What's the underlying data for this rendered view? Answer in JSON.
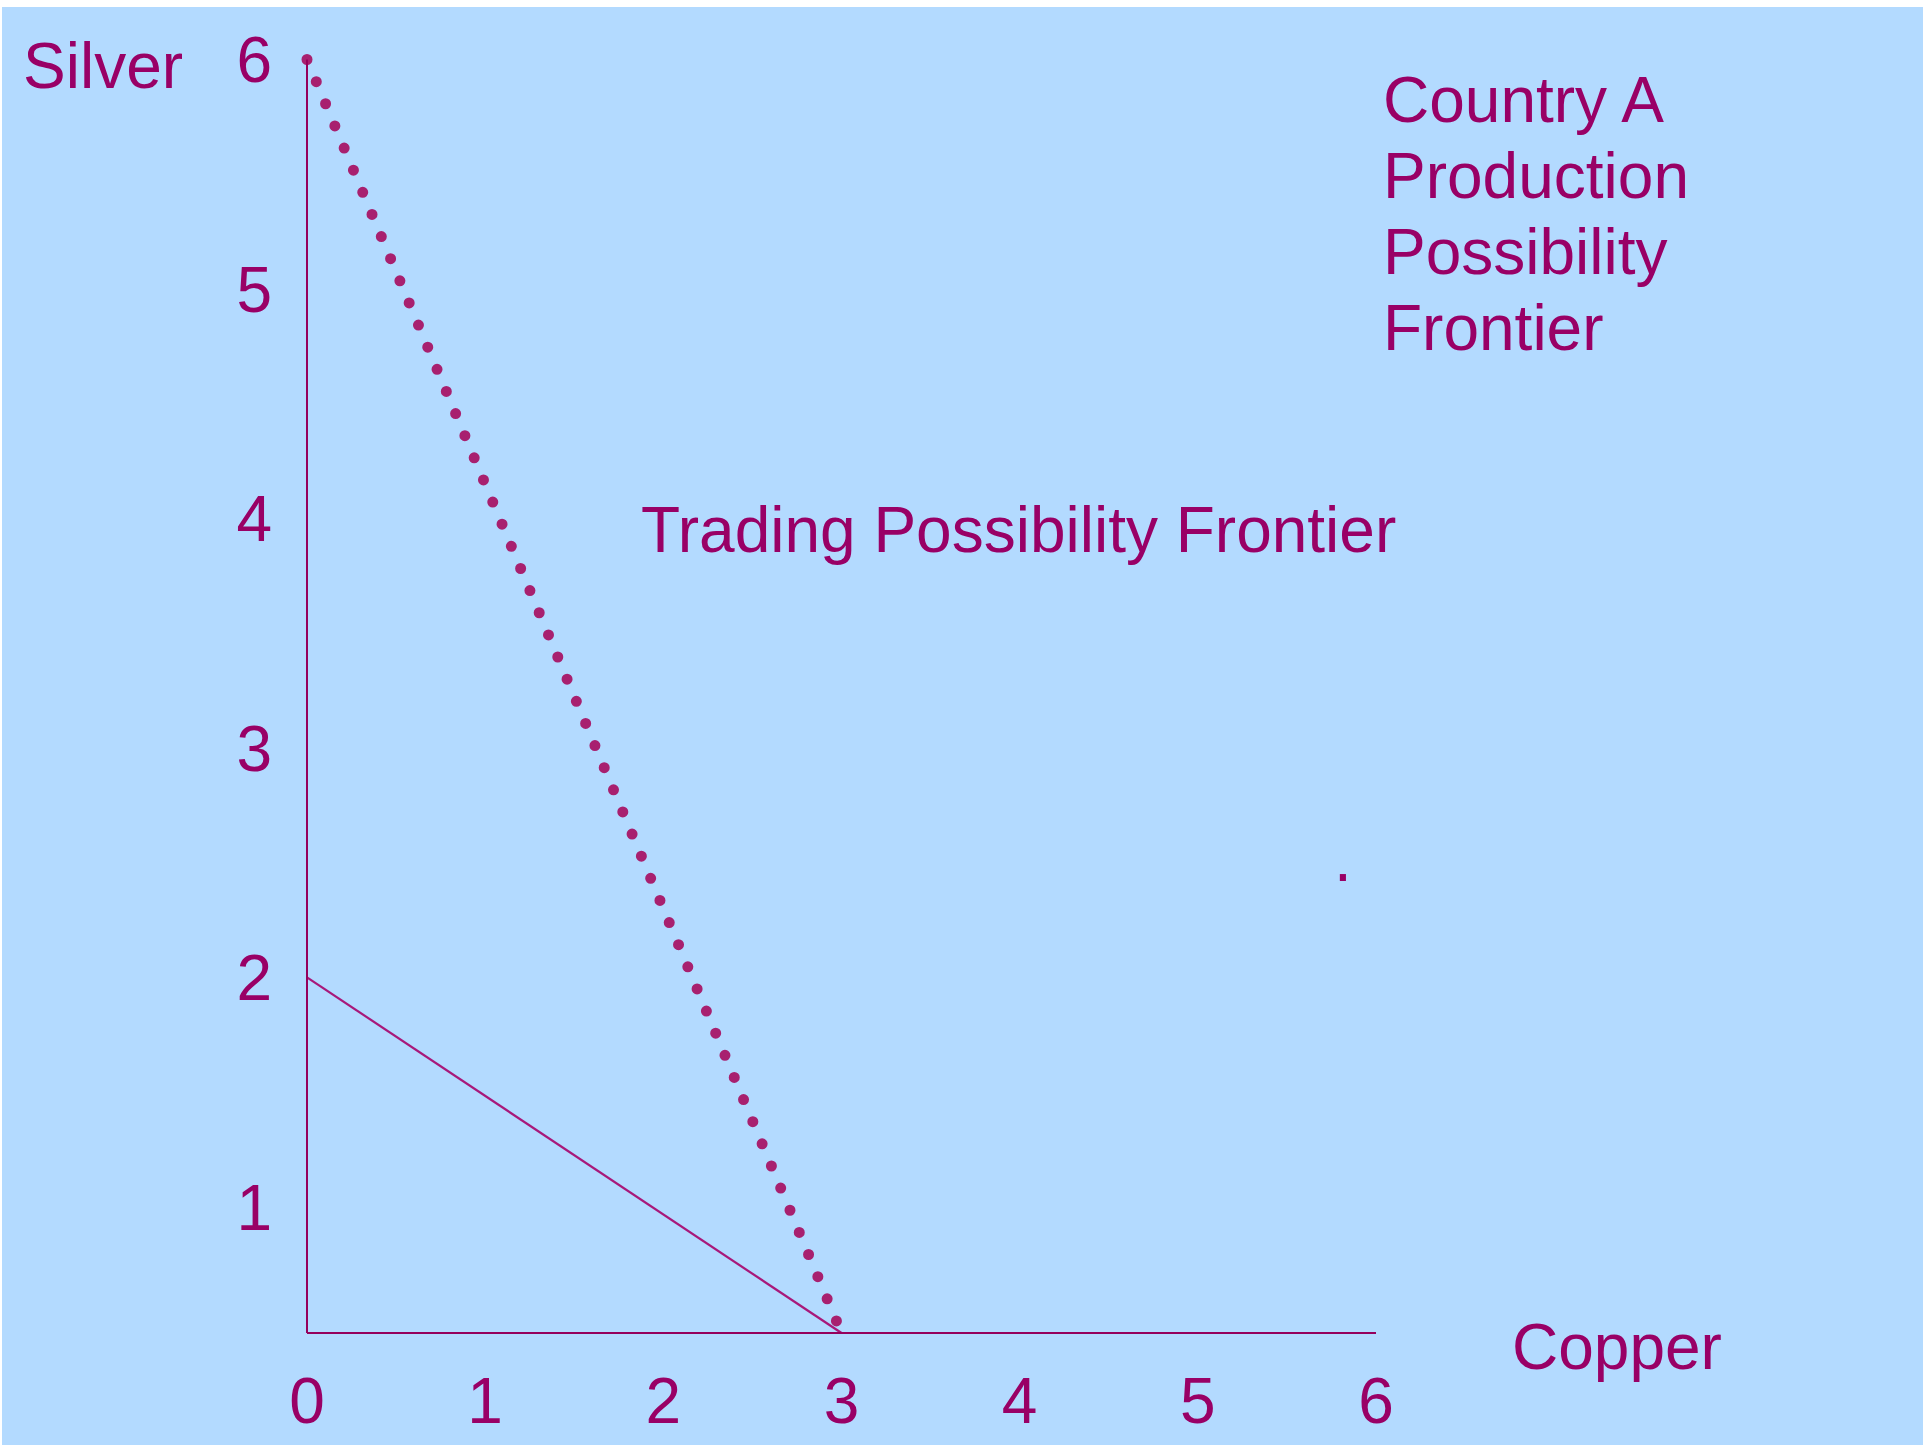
{
  "chart_data": {
    "type": "line",
    "title": "Country A Production Possibility Frontier",
    "xlabel": "Copper",
    "ylabel": "Silver",
    "x": [
      0,
      3
    ],
    "series": [
      {
        "color": "#a8187a",
        "values": [
          2,
          0.45
        ],
        "line_style": "solid"
      },
      {
        "color": "#a8206f",
        "values": [
          6,
          0.45
        ],
        "line_style": "dotted"
      }
    ],
    "xlim": [
      0,
      6
    ],
    "ylim": [
      0.45,
      6
    ],
    "xticks": [
      0,
      1,
      2,
      3,
      4,
      5,
      6
    ],
    "yticks": [
      1,
      2,
      3,
      4,
      5,
      6
    ],
    "annotations": [
      "Trading Possibility Frontier",
      "."
    ],
    "marker": "none"
  }
}
